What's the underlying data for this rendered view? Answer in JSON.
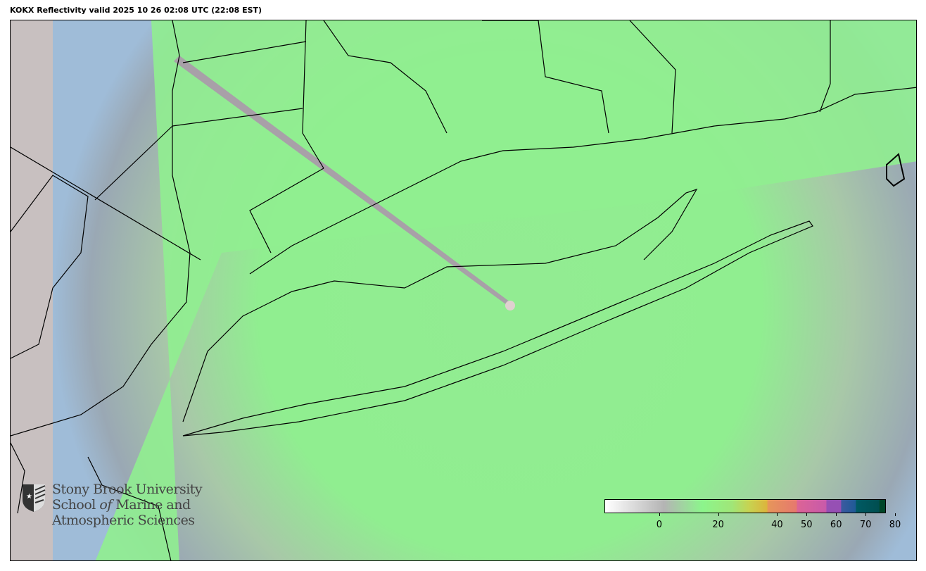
{
  "title": "KOKX Reflectivity valid 2025 10 26 02:08 UTC (22:08 EST)",
  "logo": {
    "line1": "Stony Brook University",
    "line2a": "School ",
    "line2b": "of",
    "line2c": " Marine and",
    "line3": "Atmospheric Sciences"
  },
  "colorbar": {
    "ticks": [
      {
        "value": 0,
        "label": "0"
      },
      {
        "value": 20,
        "label": "20"
      },
      {
        "value": 40,
        "label": "40"
      },
      {
        "value": 50,
        "label": "50"
      },
      {
        "value": 60,
        "label": "60"
      },
      {
        "value": 70,
        "label": "70"
      },
      {
        "value": 80,
        "label": "80"
      }
    ],
    "range": [
      -15,
      80
    ],
    "unit_stops": [
      {
        "v": -15,
        "c": "#ffffff"
      },
      {
        "v": 5,
        "c": "#b4b4b4"
      },
      {
        "v": 18,
        "c": "#8cf58c"
      },
      {
        "v": 28,
        "c": "#a0e678"
      },
      {
        "v": 34,
        "c": "#c8d250"
      },
      {
        "v": 40,
        "c": "#dcb43c"
      },
      {
        "v": 40.1,
        "c": "#e6965a"
      },
      {
        "v": 50,
        "c": "#e6786e"
      },
      {
        "v": 50.1,
        "c": "#dc6496"
      },
      {
        "v": 60,
        "c": "#c85aaa"
      },
      {
        "v": 60.1,
        "c": "#9650b4"
      },
      {
        "v": 65,
        "c": "#9650b4"
      },
      {
        "v": 65.1,
        "c": "#3c5aa0"
      },
      {
        "v": 70,
        "c": "#1e5a96"
      },
      {
        "v": 70.1,
        "c": "#005a64"
      },
      {
        "v": 78,
        "c": "#004e50"
      },
      {
        "v": 78.1,
        "c": "#004628"
      },
      {
        "v": 80,
        "c": "#004628"
      }
    ]
  },
  "colors": {
    "echo": "#90ee90",
    "ocean": "#9fbcd8",
    "land_terrain": "#d0c8c8",
    "clutter": "#9a9a9a"
  }
}
